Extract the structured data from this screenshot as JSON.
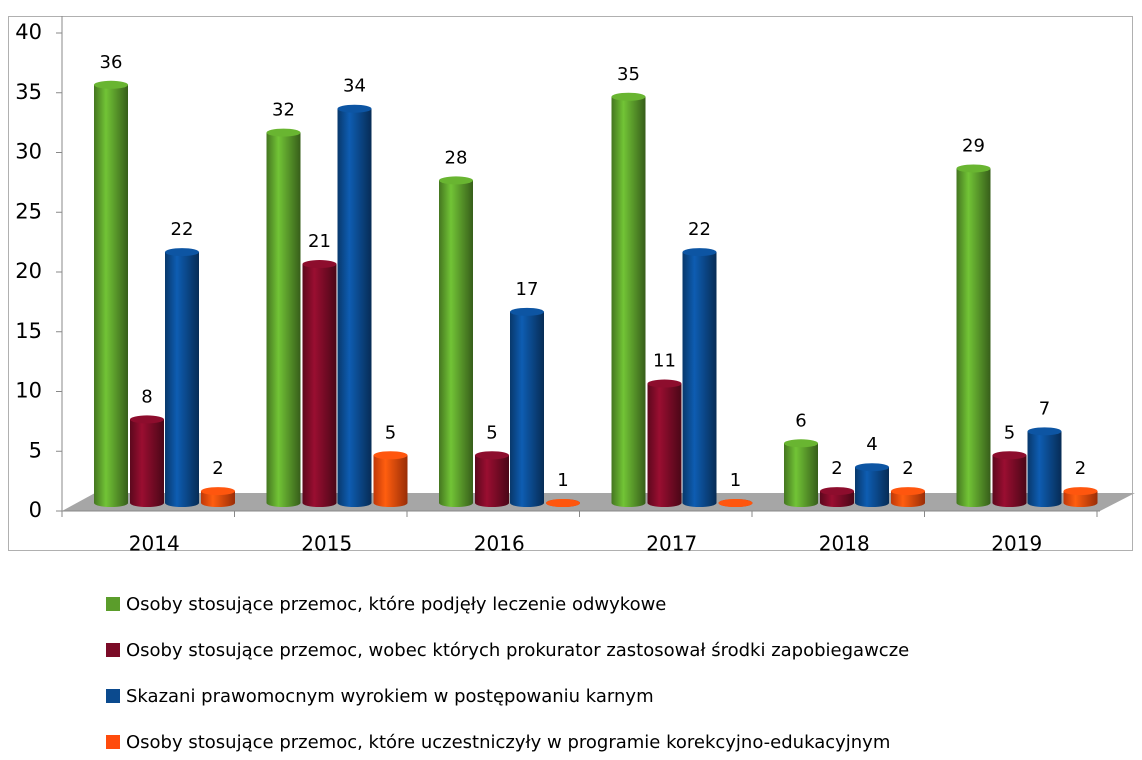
{
  "chart_data": {
    "type": "bar",
    "categories": [
      "2014",
      "2015",
      "2016",
      "2017",
      "2018",
      "2019"
    ],
    "series": [
      {
        "name": "Osoby stosujące przemoc, które podjęły leczenie odwykowe",
        "color": "#5b9d2b",
        "values": [
          36,
          32,
          28,
          35,
          6,
          29
        ]
      },
      {
        "name": "Osoby stosujące przemoc, wobec których prokurator zastosował środki zapobiegawcze",
        "color": "#7b0b27",
        "values": [
          8,
          21,
          5,
          11,
          2,
          5
        ]
      },
      {
        "name": "Skazani prawomocnym wyrokiem w postępowaniu karnym",
        "color": "#0b4a8e",
        "values": [
          22,
          34,
          17,
          22,
          4,
          7
        ]
      },
      {
        "name": "Osoby stosujące przemoc, które  uczestniczyły w programie korekcyjno-edukacyjnym",
        "color": "#ff4b0c",
        "values": [
          2,
          5,
          1,
          1,
          2,
          2
        ]
      }
    ],
    "ylim": [
      0,
      40
    ],
    "yticks": [
      0,
      5,
      10,
      15,
      20,
      25,
      30,
      35,
      40
    ],
    "legend": "bottom"
  }
}
